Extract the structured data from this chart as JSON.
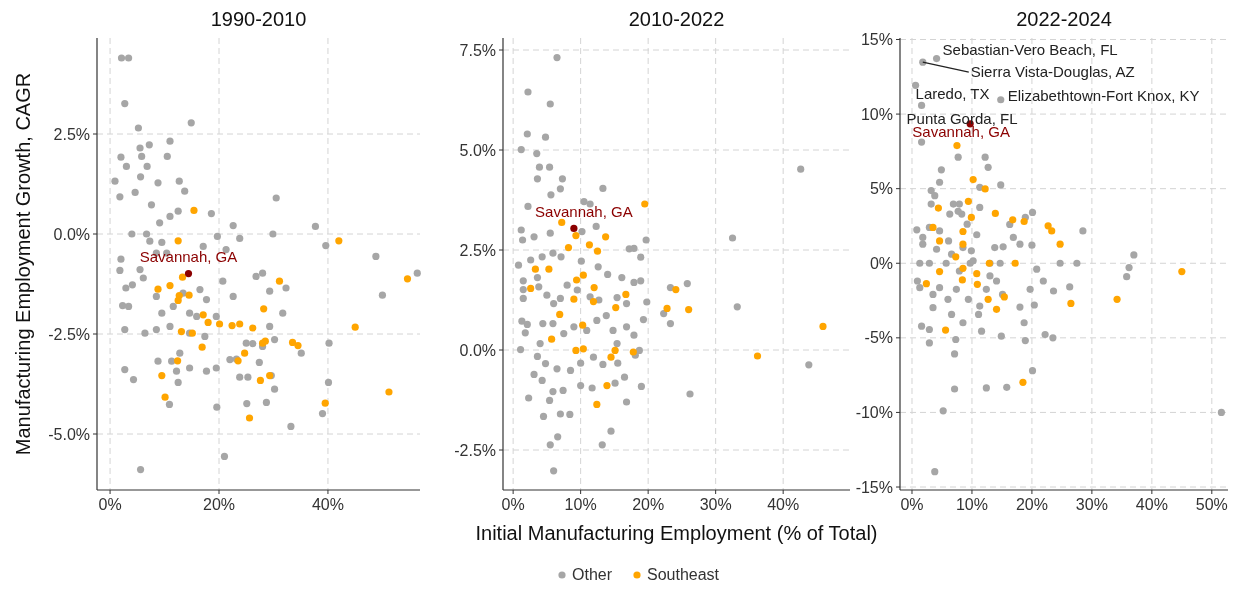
{
  "chart_data": [
    {
      "type": "scatter",
      "title": "1990-2010",
      "ylabel": "Manufacturing Employment Growth, CAGR",
      "xlim": [
        -2.4,
        56.9
      ],
      "ylim": [
        -6.4,
        4.9
      ],
      "xticks": [
        {
          "value": 0,
          "label": "0%"
        },
        {
          "value": 20,
          "label": "20%"
        },
        {
          "value": 40,
          "label": "40%"
        }
      ],
      "yticks": [
        {
          "value": -5,
          "label": "-5.0%"
        },
        {
          "value": -2.5,
          "label": "-2.5%"
        },
        {
          "value": 0,
          "label": "0.0%"
        },
        {
          "value": 2.5,
          "label": "2.5%"
        }
      ],
      "grid": true,
      "marker": "circle",
      "series": [
        {
          "color": "#a6a6a6",
          "x": [
            2.1,
            3.4,
            2.7,
            5.2,
            14.9,
            2.0,
            3.0,
            5.5,
            7.2,
            5.8,
            6.8,
            11.0,
            10.5,
            0.9,
            1.8,
            4.6,
            5.6,
            8.8,
            12.7,
            13.7,
            30.5,
            7.6,
            11.0,
            12.5,
            18.6,
            9.1,
            4.0,
            6.7,
            22.6,
            29.9,
            37.7,
            39.6,
            48.8,
            56.4,
            50.0,
            2.0,
            1.8,
            2.9,
            4.1,
            6.1,
            8.5,
            10.4,
            17.1,
            21.3,
            23.8,
            19.7,
            26.8,
            28.0,
            32.3,
            29.3,
            3.4,
            2.3,
            2.7,
            6.4,
            8.5,
            9.5,
            11.6,
            14.6,
            15.9,
            19.5,
            22.6,
            25.0,
            26.2,
            29.3,
            30.2,
            28.0,
            31.7,
            35.1,
            40.2,
            40.1,
            2.7,
            4.3,
            8.8,
            11.3,
            12.2,
            14.6,
            17.7,
            19.5,
            22.0,
            23.8,
            25.3,
            27.4,
            29.6,
            30.2,
            12.5,
            10.9,
            19.6,
            25.1,
            28.7,
            33.2,
            39.0,
            21.0,
            5.6,
            8.5,
            13.4,
            16.5,
            17.7,
            14.6,
            17.4,
            12.8,
            23.2,
            11.0,
            20.7,
            7.3,
            9.5,
            5.5
          ],
          "values": [
            4.4,
            4.4,
            3.26,
            2.65,
            2.78,
            1.92,
            1.69,
            2.15,
            2.23,
            1.94,
            1.69,
            2.32,
            1.94,
            1.32,
            0.93,
            1.04,
            1.43,
            1.28,
            1.32,
            1.07,
            0.9,
            0.73,
            0.44,
            0.57,
            0.51,
            0.28,
            0.0,
            0.0,
            0.21,
            0.0,
            0.19,
            -0.29,
            -0.56,
            -0.98,
            -1.53,
            -0.63,
            -0.91,
            -1.35,
            -1.27,
            -1.1,
            -0.48,
            -0.48,
            -0.31,
            -0.39,
            -0.11,
            -0.06,
            -1.06,
            -0.98,
            -1.35,
            -1.43,
            -1.81,
            -1.79,
            -2.39,
            -2.48,
            -2.39,
            -1.98,
            -1.81,
            -1.98,
            -2.06,
            -2.06,
            -1.56,
            -2.73,
            -2.74,
            -2.31,
            -2.64,
            -2.81,
            -1.98,
            -2.98,
            -2.73,
            -3.71,
            -3.39,
            -3.64,
            -3.18,
            -3.18,
            -3.43,
            -3.35,
            -3.43,
            -3.35,
            -3.14,
            -3.58,
            -3.58,
            -3.21,
            -3.54,
            -3.88,
            -3.71,
            -4.26,
            -4.33,
            -4.24,
            -4.21,
            -4.81,
            -4.49,
            -5.56,
            -5.89,
            -1.56,
            -1.48,
            -1.39,
            -1.64,
            -2.48,
            -2.56,
            -2.98,
            -3.13,
            -2.31,
            -1.18,
            -0.18,
            -0.21,
            -0.89
          ]
        },
        {
          "color": "#ffa500",
          "x": [
            15.4,
            12.5,
            42.0,
            8.8,
            11.0,
            14.5,
            12.7,
            12.5,
            13.3,
            17.1,
            18.0,
            20.1,
            22.4,
            23.8,
            26.2,
            28.2,
            31.1,
            54.6,
            13.1,
            15.1,
            16.9,
            23.5,
            24.7,
            28.0,
            28.5,
            33.5,
            34.5,
            45.0,
            12.4,
            9.5,
            10.1,
            25.6,
            27.6,
            29.3,
            39.5,
            51.2
          ],
          "values": [
            0.59,
            -0.17,
            -0.17,
            -1.38,
            -1.29,
            -1.53,
            -1.54,
            -1.66,
            -1.08,
            -2.02,
            -2.21,
            -2.25,
            -2.29,
            -2.25,
            -2.35,
            -1.87,
            -1.18,
            -1.12,
            -2.44,
            -2.48,
            -2.83,
            -3.17,
            -2.98,
            -2.73,
            -2.68,
            -2.71,
            -2.79,
            -2.33,
            -3.17,
            -3.54,
            -4.08,
            -4.6,
            -3.66,
            -3.54,
            -4.23,
            -3.95
          ]
        },
        {
          "name": "Savannah, GA",
          "color": "#8b0000",
          "x": [
            14.4
          ],
          "values": [
            -0.99
          ]
        }
      ]
    },
    {
      "type": "scatter",
      "title": "2010-2022",
      "xlabel": "Initial Manufacturing Employment (% of Total)",
      "legend": "bottom",
      "xlim": [
        -1.5,
        49.9
      ],
      "ylim": [
        -3.5,
        7.8
      ],
      "xticks": [
        {
          "value": 0,
          "label": "0%"
        },
        {
          "value": 10,
          "label": "10%"
        },
        {
          "value": 20,
          "label": "20%"
        },
        {
          "value": 30,
          "label": "30%"
        },
        {
          "value": 40,
          "label": "40%"
        }
      ],
      "yticks": [
        {
          "value": -2.5,
          "label": "-2.5%"
        },
        {
          "value": 0,
          "label": "0.0%"
        },
        {
          "value": 2.5,
          "label": "2.5%"
        },
        {
          "value": 5,
          "label": "5.0%"
        },
        {
          "value": 7.5,
          "label": "7.5%"
        }
      ],
      "grid": true,
      "marker": "circle",
      "series": [
        {
          "name": "Other",
          "color": "#a6a6a6",
          "x": [
            6.5,
            2.2,
            5.5,
            2.1,
            4.8,
            1.2,
            3.5,
            3.9,
            5.4,
            3.6,
            7.3,
            5.6,
            7.0,
            13.3,
            2.2,
            10.5,
            11.4,
            1.2,
            1.4,
            3.1,
            5.5,
            10.2,
            12.3,
            19.7,
            32.5,
            42.6,
            17.2,
            17.9,
            18.9,
            0.8,
            2.6,
            4.3,
            5.9,
            7.1,
            10.1,
            12.6,
            14.0,
            16.1,
            17.9,
            18.9,
            1.5,
            1.5,
            1.5,
            3.6,
            3.8,
            5.0,
            6.0,
            7.0,
            8.0,
            9.5,
            11.4,
            12.7,
            15.4,
            16.8,
            19.8,
            22.3,
            23.3,
            23.3,
            25.8,
            33.2,
            1.3,
            2.1,
            1.8,
            1.1,
            4.0,
            4.4,
            5.9,
            7.5,
            9.0,
            10.9,
            12.4,
            13.8,
            14.8,
            15.4,
            16.8,
            17.9,
            19.3,
            18.1,
            18.7,
            3.6,
            4.8,
            6.5,
            8.5,
            10.0,
            11.9,
            13.3,
            15.5,
            3.1,
            4.3,
            5.9,
            7.4,
            10.0,
            11.7,
            15.1,
            16.5,
            19.0,
            16.8,
            2.3,
            5.4,
            4.5,
            7.0,
            8.4,
            26.2,
            43.8,
            14.5,
            6.6,
            5.5,
            13.2,
            6.0
          ],
          "values": [
            7.31,
            6.45,
            6.15,
            5.4,
            5.32,
            5.01,
            4.91,
            4.57,
            4.57,
            4.28,
            4.28,
            3.88,
            4.03,
            4.04,
            3.59,
            3.71,
            3.65,
            3.0,
            2.75,
            2.83,
            2.92,
            2.96,
            3.09,
            2.75,
            2.8,
            4.52,
            2.53,
            2.54,
            2.32,
            2.12,
            2.25,
            2.33,
            2.42,
            2.33,
            2.22,
            2.08,
            1.89,
            1.81,
            1.69,
            1.73,
            1.73,
            1.51,
            1.29,
            1.81,
            1.58,
            1.37,
            1.16,
            1.29,
            1.62,
            1.5,
            1.33,
            1.25,
            1.31,
            1.16,
            1.2,
            0.91,
            0.66,
            1.56,
            1.66,
            1.08,
            0.72,
            0.64,
            0.43,
            0.01,
            0.16,
            0.66,
            0.66,
            0.41,
            0.58,
            0.49,
            0.74,
            0.86,
            0.49,
            0.16,
            0.58,
            0.37,
            0.76,
            -0.13,
            -0.01,
            -0.16,
            -0.34,
            -0.47,
            -0.51,
            -0.33,
            -0.18,
            -0.36,
            -0.33,
            -0.61,
            -0.76,
            -1.04,
            -1.01,
            -0.89,
            -0.95,
            -0.83,
            -0.68,
            -0.91,
            -1.3,
            -1.2,
            -1.26,
            -1.66,
            -1.6,
            -1.61,
            -1.1,
            -0.37,
            -2.03,
            -2.17,
            -2.37,
            -2.37,
            -3.02
          ]
        },
        {
          "name": "Southeast",
          "color": "#ffa500",
          "x": [
            19.5,
            7.2,
            9.3,
            13.7,
            8.2,
            11.3,
            12.5,
            3.3,
            5.3,
            10.4,
            9.4,
            2.6,
            12.0,
            24.1,
            16.7,
            9.0,
            11.9,
            15.2,
            22.8,
            26.0,
            6.9,
            10.3,
            5.7,
            45.9,
            9.3,
            10.4,
            15.1,
            17.8,
            14.5,
            36.2,
            13.9,
            12.4
          ],
          "values": [
            3.65,
            3.19,
            2.86,
            2.83,
            2.56,
            2.63,
            2.47,
            2.02,
            2.02,
            1.87,
            1.75,
            1.54,
            1.56,
            1.51,
            1.39,
            1.27,
            1.21,
            1.06,
            1.04,
            1.01,
            0.89,
            0.62,
            0.27,
            0.59,
            -0.01,
            0.03,
            -0.01,
            -0.05,
            -0.18,
            -0.15,
            -0.89,
            -1.36
          ]
        },
        {
          "name": "Savannah, GA",
          "color": "#8b0000",
          "x": [
            9.0
          ],
          "values": [
            3.04
          ]
        }
      ]
    },
    {
      "type": "scatter",
      "title": "2022-2024",
      "xlim": [
        -2,
        52.7
      ],
      "ylim": [
        -15.2,
        15.1
      ],
      "xticks": [
        {
          "value": 0,
          "label": "0%"
        },
        {
          "value": 10,
          "label": "10%"
        },
        {
          "value": 20,
          "label": "20%"
        },
        {
          "value": 30,
          "label": "30%"
        },
        {
          "value": 40,
          "label": "40%"
        },
        {
          "value": 50,
          "label": "50%"
        }
      ],
      "yticks": [
        {
          "value": -15,
          "label": "-15%"
        },
        {
          "value": -10,
          "label": "-10%"
        },
        {
          "value": -5,
          "label": "-5%"
        },
        {
          "value": 0,
          "label": "0%"
        },
        {
          "value": 5,
          "label": "5%"
        },
        {
          "value": 10,
          "label": "10%"
        },
        {
          "value": 15,
          "label": "15%"
        }
      ],
      "grid": true,
      "marker": "circle",
      "annotations": [
        {
          "text": "Sebastian-Vero Beach, FL",
          "x": 4.1,
          "y": 13.72
        },
        {
          "text": "Sierra Vista-Douglas, AZ",
          "x": 1.8,
          "y": 13.48
        },
        {
          "text": "Laredo, TX",
          "x": 0.6,
          "y": 11.93
        },
        {
          "text": "Elizabethtown-Fort Knox, KY",
          "x": 14.8,
          "y": 10.96
        },
        {
          "text": "Punta Gorda, FL",
          "x": 1.6,
          "y": 10.58
        }
      ],
      "series": [
        {
          "color": "#a6a6a6",
          "x": [
            0.6,
            1.6,
            1.8,
            4.1,
            14.8,
            1.6,
            7.7,
            12.2,
            12.7,
            4.9,
            4.6,
            14.8,
            3.2,
            3.8,
            11.3,
            3.2,
            6.9,
            7.9,
            6.3,
            8.3,
            11.3,
            16.3,
            16.9,
            18.9,
            20.1,
            28.5,
            0.8,
            1.8,
            1.8,
            2.9,
            4.6,
            6.1,
            4.1,
            6.6,
            8.5,
            9.9,
            10.8,
            13.8,
            15.2,
            18.0,
            20.0,
            1.3,
            2.9,
            5.7,
            9.7,
            13.0,
            14.7,
            24.7,
            27.5,
            20.8,
            21.9,
            37.0,
            36.2,
            35.8,
            0.9,
            1.3,
            3.5,
            4.6,
            6.0,
            7.4,
            9.4,
            11.3,
            12.4,
            14.1,
            15.1,
            18.0,
            19.7,
            20.4,
            23.6,
            26.3,
            1.6,
            2.9,
            3.5,
            6.6,
            8.5,
            11.1,
            2.9,
            7.3,
            7.1,
            11.6,
            14.9,
            18.7,
            18.9,
            22.2,
            23.5,
            20.1,
            7.1,
            12.4,
            15.8,
            5.2,
            51.6,
            3.8,
            7.7,
            9.2,
            10.2,
            7.9,
            13.0
          ],
          "values": [
            11.93,
            10.58,
            13.48,
            13.72,
            10.96,
            8.12,
            7.11,
            7.11,
            6.43,
            6.26,
            5.43,
            5.25,
            4.87,
            4.53,
            5.09,
            3.97,
            3.97,
            3.97,
            3.3,
            3.3,
            3.74,
            2.6,
            1.73,
            3.07,
            3.41,
            2.17,
            2.24,
            1.73,
            1.28,
            2.4,
            2.17,
            1.5,
            0.94,
            0.61,
            1.05,
            0.83,
            1.91,
            1.05,
            1.1,
            1.28,
            1.21,
            0.0,
            0.0,
            0.0,
            0.0,
            0.0,
            0.0,
            0.0,
            0.0,
            -0.4,
            -1.19,
            0.56,
            -0.29,
            -0.9,
            -1.19,
            -1.64,
            -2.09,
            -1.64,
            -2.42,
            -1.75,
            -2.42,
            -2.87,
            -1.75,
            -1.19,
            -2.09,
            -2.94,
            -1.75,
            -2.8,
            -1.86,
            -1.59,
            -4.22,
            -4.44,
            -2.98,
            -3.43,
            -3.99,
            -3.43,
            -5.34,
            -5.11,
            -6.08,
            -4.55,
            -4.89,
            -3.99,
            -5.18,
            -4.78,
            -5.0,
            -7.2,
            -8.43,
            -8.36,
            -8.32,
            -9.89,
            -10.0,
            -13.97,
            3.48,
            2.62,
            0.16,
            -0.52,
            -0.85
          ]
        },
        {
          "color": "#ffa500",
          "x": [
            7.5,
            10.2,
            12.2,
            9.4,
            4.4,
            13.9,
            16.8,
            18.7,
            3.5,
            22.7,
            23.3,
            24.7,
            9.9,
            8.5,
            4.6,
            8.5,
            7.3,
            12.9,
            17.2,
            4.6,
            8.5,
            10.8,
            8.4,
            10.9,
            2.4,
            45.0,
            12.7,
            14.1,
            15.4,
            26.5,
            34.2,
            5.6,
            18.5
          ],
          "values": [
            7.89,
            5.61,
            4.98,
            4.15,
            3.7,
            3.34,
            2.91,
            2.8,
            2.4,
            2.51,
            2.17,
            1.28,
            3.07,
            2.13,
            1.5,
            1.28,
            0.43,
            0.0,
            0.0,
            -0.56,
            -0.34,
            -0.7,
            -1.12,
            -1.41,
            -1.37,
            -0.56,
            -2.42,
            -3.09,
            -2.26,
            -2.69,
            -2.42,
            -4.48,
            -7.98
          ]
        },
        {
          "name": "Savannah, GA",
          "color": "#8b0000",
          "x": [
            9.7
          ],
          "values": [
            9.35
          ]
        }
      ]
    }
  ]
}
